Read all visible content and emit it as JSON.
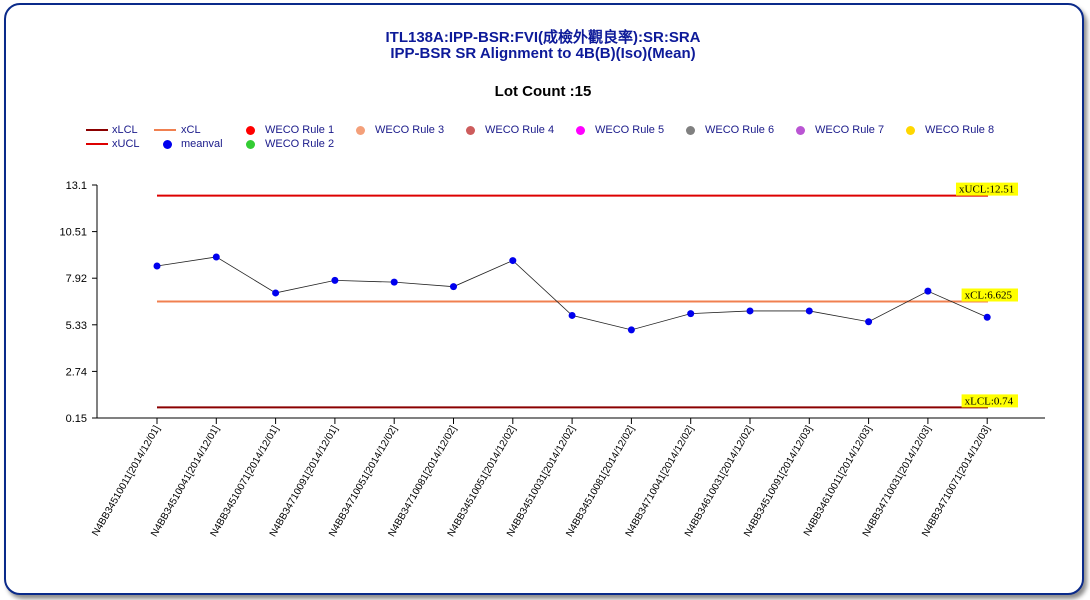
{
  "header": {
    "title_line1": "ITL138A:IPP-BSR:FVI(成檢外觀良率):SR:SRA",
    "title_line2": "IPP-BSR SR Alignment to 4B(B)(Iso)(Mean)",
    "lot_count": "Lot Count :15"
  },
  "legend": [
    {
      "label": "xLCL",
      "kind": "line",
      "color": "#8b0000"
    },
    {
      "label": "xUCL",
      "kind": "line",
      "color": "#dd0000"
    },
    {
      "label": "xCL",
      "kind": "line",
      "color": "#f08050"
    },
    {
      "label": "meanval",
      "kind": "dot",
      "color": "#0000ee"
    },
    {
      "label": "WECO Rule 1",
      "kind": "dot",
      "color": "#ff0000"
    },
    {
      "label": "WECO Rule 2",
      "kind": "dot",
      "color": "#33cc33"
    },
    {
      "label": "WECO Rule 3",
      "kind": "dot",
      "color": "#f4a07a"
    },
    {
      "label": "WECO Rule 4",
      "kind": "dot",
      "color": "#cd5c5c"
    },
    {
      "label": "WECO Rule 5",
      "kind": "dot",
      "color": "#ff00ff"
    },
    {
      "label": "WECO Rule 6",
      "kind": "dot",
      "color": "#808080"
    },
    {
      "label": "WECO Rule 7",
      "kind": "dot",
      "color": "#ba55d3"
    },
    {
      "label": "WECO Rule 8",
      "kind": "dot",
      "color": "#ffd700"
    }
  ],
  "chart_data": {
    "type": "line",
    "y_ticks": [
      "0.15",
      "2.74",
      "5.33",
      "7.92",
      "10.51",
      "13.1"
    ],
    "ylim": [
      0.15,
      13.1
    ],
    "categories": [
      "N4BB34510011[2014/12/01]",
      "N4BB34510041[2014/12/01]",
      "N4BB34510071[2014/12/01]",
      "N4BB34710091[2014/12/01]",
      "N4BB34710051[2014/12/02]",
      "N4BB34710081[2014/12/02]",
      "N4BB34510051[2014/12/02]",
      "N4BB34510031[2014/12/02]",
      "N4BB34510081[2014/12/02]",
      "N4BB34710041[2014/12/02]",
      "N4BB34610031[2014/12/02]",
      "N4BB34510091[2014/12/03]",
      "N4BB34610011[2014/12/03]",
      "N4BB34710031[2014/12/03]",
      "N4BB34710071[2014/12/03]"
    ],
    "series": [
      {
        "name": "meanval",
        "color": "#0000ee",
        "values": [
          8.6,
          9.1,
          7.1,
          7.8,
          7.7,
          7.45,
          8.9,
          5.85,
          5.05,
          5.95,
          6.1,
          6.1,
          5.5,
          7.2,
          5.75
        ]
      }
    ],
    "control_lines": [
      {
        "name": "xUCL",
        "value": 12.51,
        "label": "xUCL:12.51",
        "color": "#dd0000"
      },
      {
        "name": "xCL",
        "value": 6.625,
        "label": "xCL:6.625",
        "color": "#f08050"
      },
      {
        "name": "xLCL",
        "value": 0.74,
        "label": "xLCL:0.74",
        "color": "#8b0000"
      }
    ]
  }
}
